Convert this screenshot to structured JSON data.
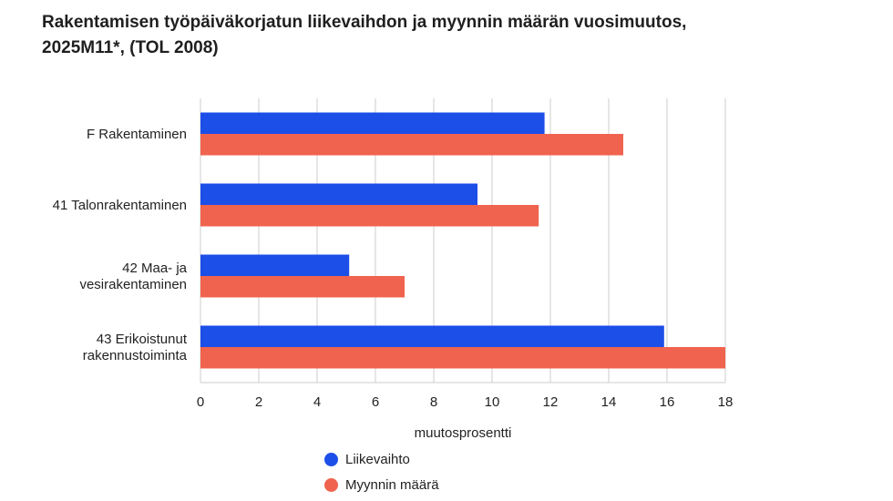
{
  "chart_data": {
    "type": "bar",
    "orientation": "horizontal",
    "title": "Rakentamisen työpäiväkorjatun liikevaihdon ja myynnin määrän vuosimuutos, 2025M11*, (TOL 2008)",
    "xlabel": "muutosprosentti",
    "ylabel": "",
    "categories": [
      [
        "F Rakentaminen"
      ],
      [
        "41 Talonrakentaminen"
      ],
      [
        "42 Maa- ja",
        "vesirakentaminen"
      ],
      [
        "43 Erikoistunut",
        "rakennustoiminta"
      ]
    ],
    "series": [
      {
        "name": "Liikevaihto",
        "color": "#1c4ee8",
        "values": [
          11.8,
          9.5,
          5.1,
          15.9
        ]
      },
      {
        "name": "Myynnin määrä",
        "color": "#f0634e",
        "values": [
          14.5,
          11.6,
          7.0,
          18.0
        ]
      }
    ],
    "xlim": [
      0,
      18
    ],
    "xticks": [
      0,
      2,
      4,
      6,
      8,
      10,
      12,
      14,
      16,
      18
    ],
    "grid": "vertical",
    "legend_position": "bottom"
  }
}
